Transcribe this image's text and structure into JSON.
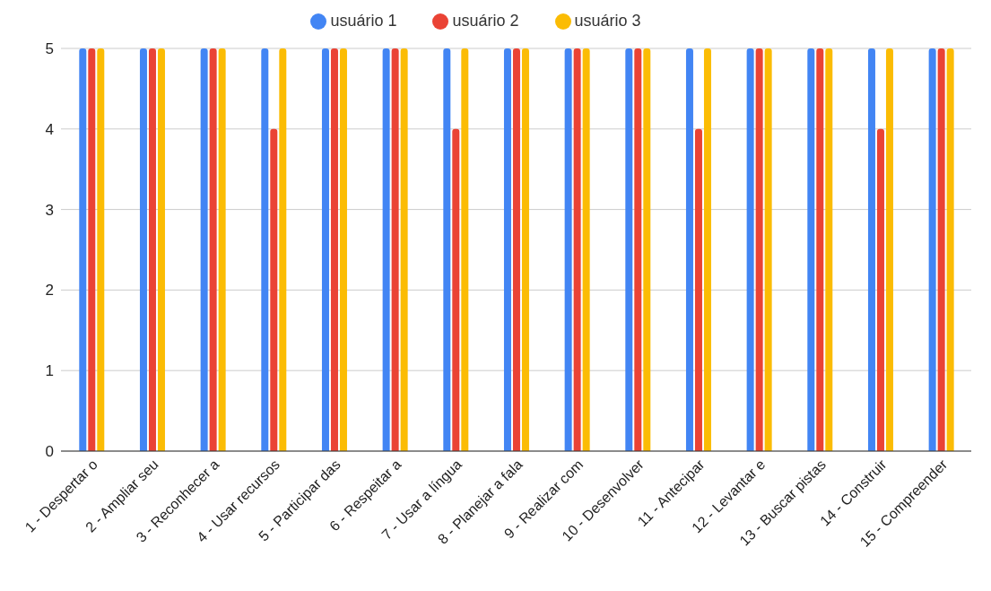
{
  "chart_data": {
    "type": "bar",
    "categories": [
      "1 - Despertar o",
      "2 - Ampliar seu",
      "3 - Reconhecer a",
      "4 - Usar recursos",
      "5 - Participar das",
      "6 - Respeitar a",
      "7 - Usar a língua",
      "8 - Planejar a fala",
      "9 - Realizar com",
      "10 - Desenvolver",
      "11 - Antecipar",
      "12 - Levantar e",
      "13 - Buscar pistas",
      "14 - Construir",
      "15 - Compreender"
    ],
    "series": [
      {
        "name": "usuário 1",
        "color": "#4285f4",
        "values": [
          5,
          5,
          5,
          5,
          5,
          5,
          5,
          5,
          5,
          5,
          5,
          5,
          5,
          5,
          5
        ]
      },
      {
        "name": "usuário 2",
        "color": "#ea4335",
        "values": [
          5,
          5,
          5,
          4,
          5,
          5,
          4,
          5,
          5,
          5,
          4,
          5,
          5,
          4,
          5
        ]
      },
      {
        "name": "usuário 3",
        "color": "#fbbc04",
        "values": [
          5,
          5,
          5,
          5,
          5,
          5,
          5,
          5,
          5,
          5,
          5,
          5,
          5,
          5,
          5
        ]
      }
    ],
    "ylim": [
      0,
      5
    ],
    "yticks": [
      0,
      1,
      2,
      3,
      4,
      5
    ],
    "grid": "y",
    "legend": "top"
  }
}
